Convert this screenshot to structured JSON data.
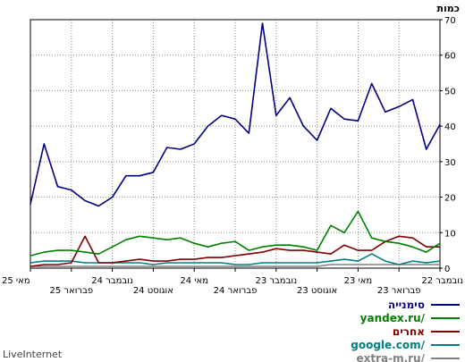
{
  "chart_data": {
    "type": "line",
    "unit_label": "כמות",
    "ylim": [
      0,
      70
    ],
    "y_ticks": [
      0,
      10,
      20,
      30,
      40,
      50,
      60,
      70
    ],
    "grid": true,
    "legend_position": "bottom-right",
    "x_tick_labels": [
      {
        "label": "מאי 25",
        "row": 1
      },
      {
        "label": "פברואר 25",
        "row": 2
      },
      {
        "label": "נובמבר 24",
        "row": 1
      },
      {
        "label": "אוגוסט 24",
        "row": 2
      },
      {
        "label": "מאי 24",
        "row": 1
      },
      {
        "label": "פברואר 24",
        "row": 2
      },
      {
        "label": "נובמבר 23",
        "row": 1
      },
      {
        "label": "אוגוסט 23",
        "row": 2
      },
      {
        "label": "מאי 23",
        "row": 1
      },
      {
        "label": "פברואר 23",
        "row": 2
      },
      {
        "label": "נובמבר 22",
        "row": 1
      }
    ],
    "series": [
      {
        "name": "סימנייה",
        "color": "#000080",
        "values": [
          18,
          35,
          23,
          22,
          19,
          17.5,
          20,
          26,
          26,
          27,
          34,
          33.5,
          35,
          40,
          43,
          42,
          38,
          69,
          43,
          48,
          40,
          36,
          45,
          42,
          41.5,
          52,
          44,
          45.5,
          47.5,
          33.5,
          40.5
        ]
      },
      {
        "name": "yandex.ru/",
        "color": "#008000",
        "values": [
          3.5,
          4.5,
          5,
          5,
          4.5,
          4,
          6,
          8,
          9,
          8.5,
          8,
          8.5,
          7,
          6,
          7,
          7.5,
          5,
          6,
          6.5,
          6.5,
          6,
          5,
          12,
          10,
          16,
          8.5,
          7.5,
          7,
          6,
          4.5,
          7
        ]
      },
      {
        "name": "אחרים",
        "color": "#800000",
        "values": [
          0.5,
          1,
          1,
          1.5,
          9,
          1.5,
          1.5,
          2,
          2.5,
          2,
          2,
          2.5,
          2.5,
          3,
          3,
          3.5,
          4,
          4.5,
          5.5,
          5,
          5,
          4.5,
          4,
          6.5,
          5,
          5,
          7.5,
          9,
          8.5,
          6,
          6
        ]
      },
      {
        "name": "google.com/",
        "color": "#008080",
        "values": [
          1.5,
          2,
          2,
          2,
          1.5,
          1.5,
          1.5,
          1.5,
          1.5,
          1,
          1.5,
          1.5,
          1.5,
          1.5,
          1.5,
          1,
          1,
          1.5,
          1.5,
          1.5,
          1.5,
          1.5,
          2,
          2.5,
          2,
          4,
          2,
          1,
          2,
          1.5,
          2
        ]
      },
      {
        "name": "extra-m.ru/",
        "color": "#808080",
        "values": [
          0.5,
          0.5,
          0.5,
          0.5,
          0.5,
          0.5,
          0.5,
          0.5,
          0.5,
          0.5,
          0.5,
          0.5,
          0.5,
          0.5,
          0.5,
          0.5,
          0.5,
          0.5,
          0.5,
          0.5,
          0.5,
          0.5,
          1,
          1,
          1,
          1,
          1,
          1,
          1,
          1,
          1
        ]
      }
    ]
  },
  "credit": "LiveInternet"
}
